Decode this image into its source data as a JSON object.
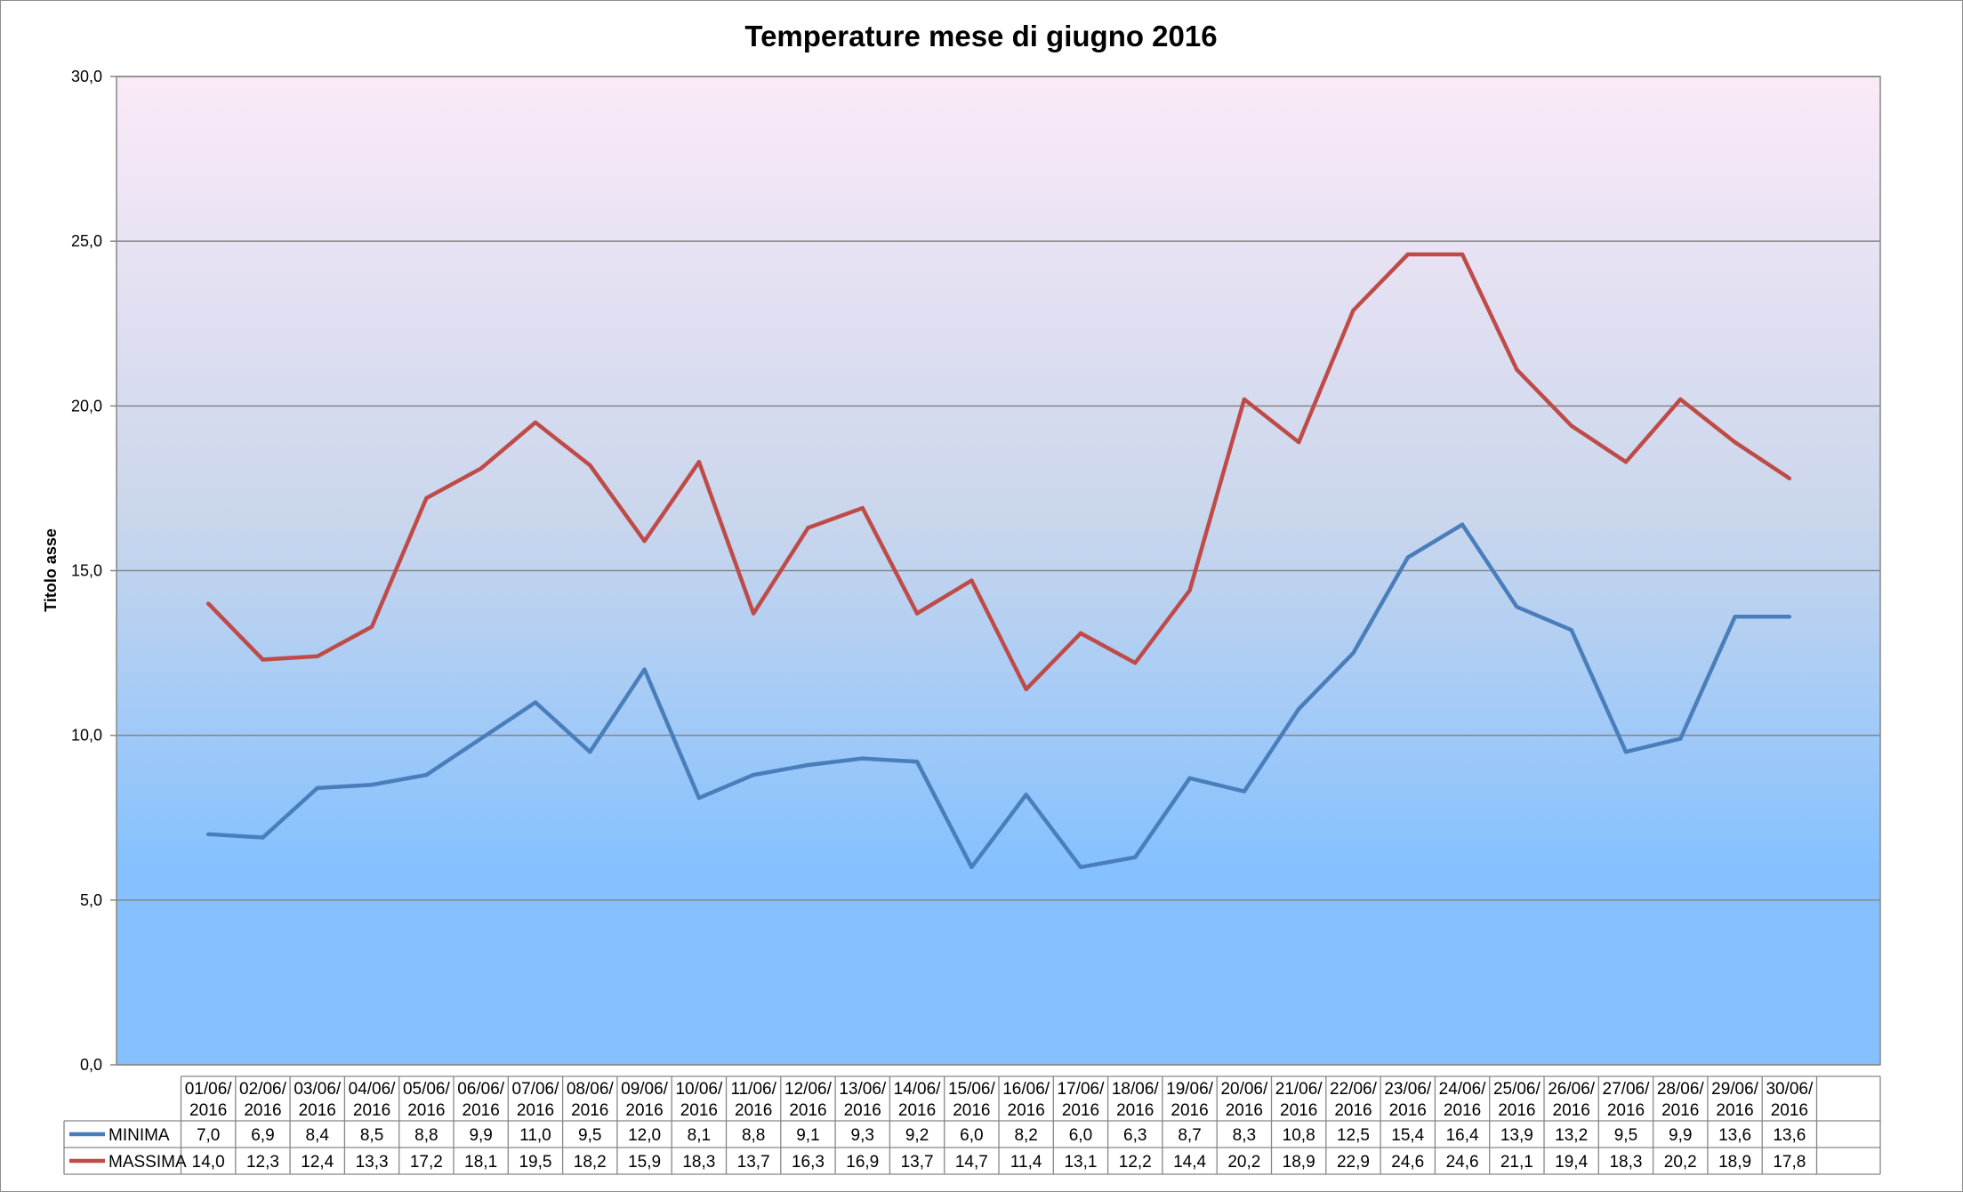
{
  "chart_data": {
    "type": "line",
    "title": "Temperature mese di giugno 2016",
    "xlabel": "",
    "ylabel": "Titolo asse",
    "ylim": [
      0,
      30
    ],
    "yticks": [
      "0,0",
      "5,0",
      "10,0",
      "15,0",
      "20,0",
      "25,0",
      "30,0"
    ],
    "grid": true,
    "legend": "data-table-left",
    "categories": [
      [
        "01/06/",
        "2016"
      ],
      [
        "02/06/",
        "2016"
      ],
      [
        "03/06/",
        "2016"
      ],
      [
        "04/06/",
        "2016"
      ],
      [
        "05/06/",
        "2016"
      ],
      [
        "06/06/",
        "2016"
      ],
      [
        "07/06/",
        "2016"
      ],
      [
        "08/06/",
        "2016"
      ],
      [
        "09/06/",
        "2016"
      ],
      [
        "10/06/",
        "2016"
      ],
      [
        "11/06/",
        "2016"
      ],
      [
        "12/06/",
        "2016"
      ],
      [
        "13/06/",
        "2016"
      ],
      [
        "14/06/",
        "2016"
      ],
      [
        "15/06/",
        "2016"
      ],
      [
        "16/06/",
        "2016"
      ],
      [
        "17/06/",
        "2016"
      ],
      [
        "18/06/",
        "2016"
      ],
      [
        "19/06/",
        "2016"
      ],
      [
        "20/06/",
        "2016"
      ],
      [
        "21/06/",
        "2016"
      ],
      [
        "22/06/",
        "2016"
      ],
      [
        "23/06/",
        "2016"
      ],
      [
        "24/06/",
        "2016"
      ],
      [
        "25/06/",
        "2016"
      ],
      [
        "26/06/",
        "2016"
      ],
      [
        "27/06/",
        "2016"
      ],
      [
        "28/06/",
        "2016"
      ],
      [
        "29/06/",
        "2016"
      ],
      [
        "30/06/",
        "2016"
      ]
    ],
    "series": [
      {
        "name": "MINIMA",
        "color": "#4a7ebb",
        "values": [
          7.0,
          6.9,
          8.4,
          8.5,
          8.8,
          9.9,
          11.0,
          9.5,
          12.0,
          8.1,
          8.8,
          9.1,
          9.3,
          9.2,
          6.0,
          8.2,
          6.0,
          6.3,
          8.7,
          8.3,
          10.8,
          12.5,
          15.4,
          16.4,
          13.9,
          13.2,
          9.5,
          9.9,
          13.6,
          13.6
        ],
        "labels": [
          "7,0",
          "6,9",
          "8,4",
          "8,5",
          "8,8",
          "9,9",
          "11,0",
          "9,5",
          "12,0",
          "8,1",
          "8,8",
          "9,1",
          "9,3",
          "9,2",
          "6,0",
          "8,2",
          "6,0",
          "6,3",
          "8,7",
          "8,3",
          "10,8",
          "12,5",
          "15,4",
          "16,4",
          "13,9",
          "13,2",
          "9,5",
          "9,9",
          "13,6",
          "13,6"
        ]
      },
      {
        "name": "MASSIMA",
        "color": "#be4b48",
        "values": [
          14.0,
          12.3,
          12.4,
          13.3,
          17.2,
          18.1,
          19.5,
          18.2,
          15.9,
          18.3,
          13.7,
          16.3,
          16.9,
          13.7,
          14.7,
          11.4,
          13.1,
          12.2,
          14.4,
          20.2,
          18.9,
          22.9,
          24.6,
          24.6,
          21.1,
          19.4,
          18.3,
          20.2,
          18.9,
          17.8
        ],
        "labels": [
          "14,0",
          "12,3",
          "12,4",
          "13,3",
          "17,2",
          "18,1",
          "19,5",
          "18,2",
          "15,9",
          "18,3",
          "13,7",
          "16,3",
          "16,9",
          "13,7",
          "14,7",
          "11,4",
          "13,1",
          "12,2",
          "14,4",
          "20,2",
          "18,9",
          "22,9",
          "24,6",
          "24,6",
          "21,1",
          "19,4",
          "18,3",
          "20,2",
          "18,9",
          "17,8"
        ]
      }
    ],
    "plot_background": {
      "top_color": "#fbeaf8",
      "middle_color": "#c9d6ec",
      "bottom_color": "#85c1ff"
    }
  }
}
